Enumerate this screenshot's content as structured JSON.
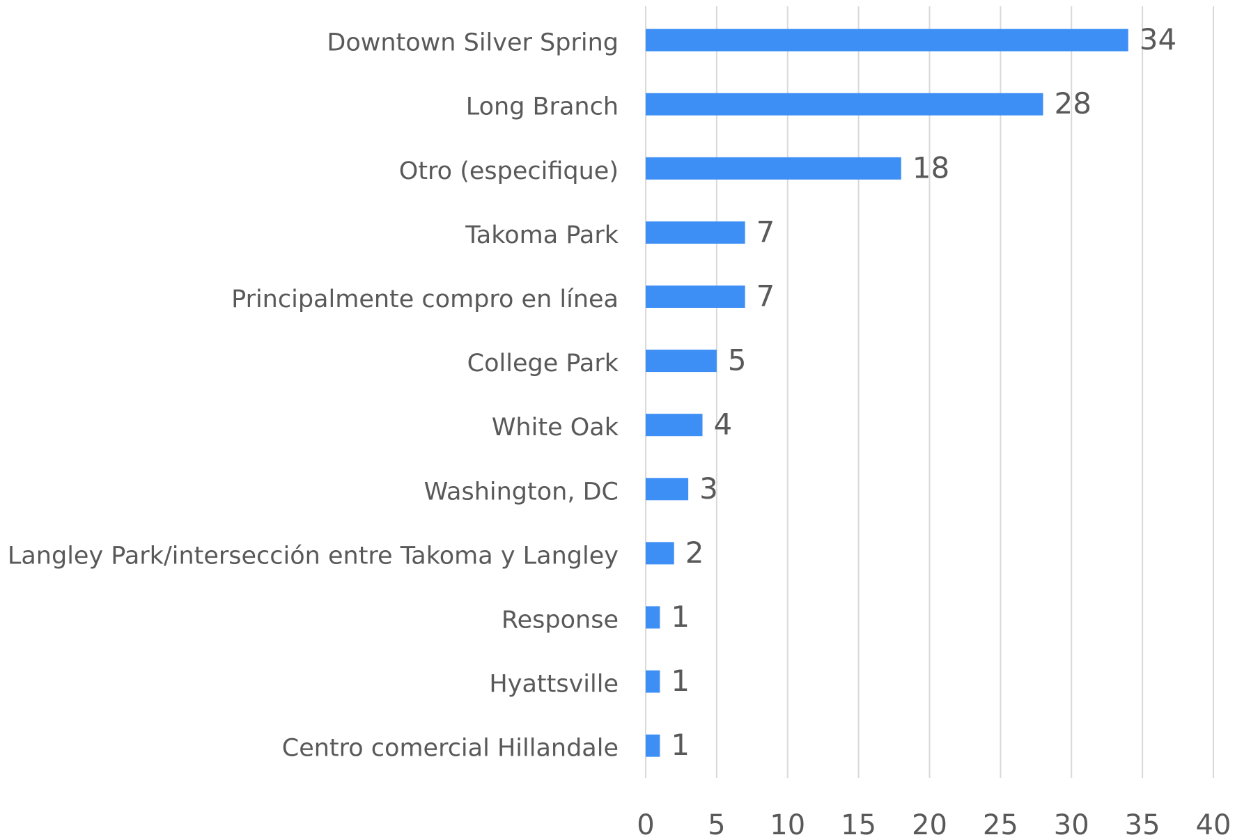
{
  "chart_data": {
    "type": "hbar",
    "categories": [
      "Downtown Silver Spring",
      "Long Branch",
      "Otro (especifique)",
      "Takoma Park",
      "Principalmente compro en línea",
      "College Park",
      "White Oak",
      "Washington, DC",
      "Langley Park/intersección entre Takoma y Langley",
      "Response",
      "Hyattsville",
      "Centro comercial Hillandale"
    ],
    "values": [
      34,
      28,
      18,
      7,
      7,
      5,
      4,
      3,
      2,
      1,
      1,
      1
    ],
    "color": "#3d8ef5",
    "xlim": [
      0,
      40
    ],
    "xticks": [
      0,
      5,
      10,
      15,
      20,
      25,
      30,
      35,
      40
    ],
    "grid": true
  }
}
